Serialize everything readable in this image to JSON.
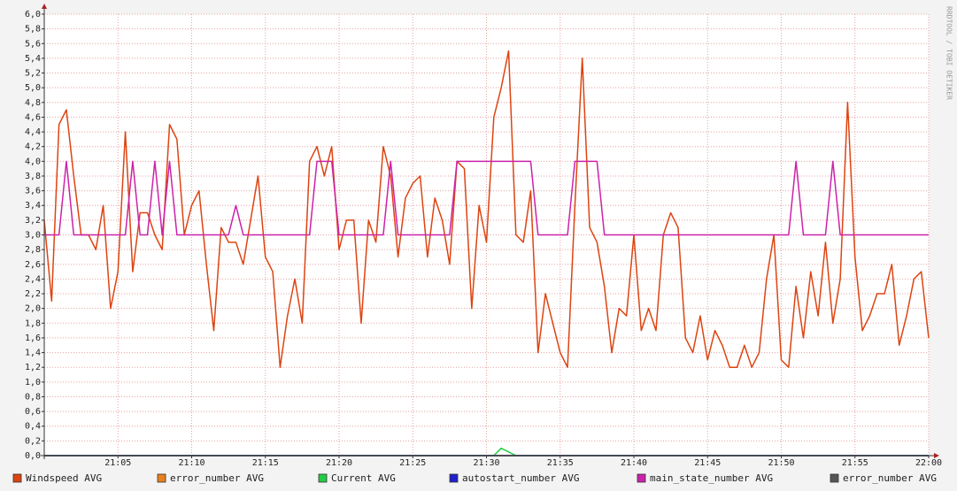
{
  "chart_data": {
    "type": "line",
    "watermark": "RRDTOOL / TOBI OETIKER",
    "x": [
      1260,
      1260.5,
      1261,
      1261.5,
      1262,
      1262.5,
      1263,
      1263.5,
      1264,
      1264.5,
      1265,
      1265.5,
      1266,
      1266.5,
      1267,
      1267.5,
      1268,
      1268.5,
      1269,
      1269.5,
      1270,
      1270.5,
      1271,
      1271.5,
      1272,
      1272.5,
      1273,
      1273.5,
      1274,
      1274.5,
      1275,
      1275.5,
      1276,
      1276.5,
      1277,
      1277.5,
      1278,
      1278.5,
      1279,
      1279.5,
      1280,
      1280.5,
      1281,
      1281.5,
      1282,
      1282.5,
      1283,
      1283.5,
      1284,
      1284.5,
      1285,
      1285.5,
      1286,
      1286.5,
      1287,
      1287.5,
      1288,
      1288.5,
      1289,
      1289.5,
      1290,
      1290.5,
      1291,
      1291.5,
      1292,
      1292.5,
      1293,
      1293.5,
      1294,
      1294.5,
      1295,
      1295.5,
      1296,
      1296.5,
      1297,
      1297.5,
      1298,
      1298.5,
      1299,
      1299.5,
      1300,
      1300.5,
      1301,
      1301.5,
      1302,
      1302.5,
      1303,
      1303.5,
      1304,
      1304.5,
      1305,
      1305.5,
      1306,
      1306.5,
      1307,
      1307.5,
      1308,
      1308.5,
      1309,
      1309.5,
      1310,
      1310.5,
      1311,
      1311.5,
      1312,
      1312.5,
      1313,
      1313.5,
      1314,
      1314.5,
      1315,
      1315.5,
      1316,
      1316.5,
      1317,
      1317.5,
      1318,
      1318.5,
      1319,
      1319.5,
      1320
    ],
    "xlim": [
      1260,
      1320
    ],
    "xticks": [
      {
        "value": 1265,
        "label": "21:05"
      },
      {
        "value": 1270,
        "label": "21:10"
      },
      {
        "value": 1275,
        "label": "21:15"
      },
      {
        "value": 1280,
        "label": "21:20"
      },
      {
        "value": 1285,
        "label": "21:25"
      },
      {
        "value": 1290,
        "label": "21:30"
      },
      {
        "value": 1295,
        "label": "21:35"
      },
      {
        "value": 1300,
        "label": "21:40"
      },
      {
        "value": 1305,
        "label": "21:45"
      },
      {
        "value": 1310,
        "label": "21:50"
      },
      {
        "value": 1315,
        "label": "21:55"
      },
      {
        "value": 1320,
        "label": "22:00"
      }
    ],
    "ylim": [
      0,
      6
    ],
    "yticks": [
      {
        "value": 0,
        "label": "0,0"
      },
      {
        "value": 0.2,
        "label": "0,2"
      },
      {
        "value": 0.4,
        "label": "0,4"
      },
      {
        "value": 0.6,
        "label": "0,6"
      },
      {
        "value": 0.8,
        "label": "0,8"
      },
      {
        "value": 1,
        "label": "1,0"
      },
      {
        "value": 1.2,
        "label": "1,2"
      },
      {
        "value": 1.4,
        "label": "1,4"
      },
      {
        "value": 1.6,
        "label": "1,6"
      },
      {
        "value": 1.8,
        "label": "1,8"
      },
      {
        "value": 2,
        "label": "2,0"
      },
      {
        "value": 2.2,
        "label": "2,2"
      },
      {
        "value": 2.4,
        "label": "2,4"
      },
      {
        "value": 2.6,
        "label": "2,6"
      },
      {
        "value": 2.8,
        "label": "2,8"
      },
      {
        "value": 3,
        "label": "3,0"
      },
      {
        "value": 3.2,
        "label": "3,2"
      },
      {
        "value": 3.4,
        "label": "3,4"
      },
      {
        "value": 3.6,
        "label": "3,6"
      },
      {
        "value": 3.8,
        "label": "3,8"
      },
      {
        "value": 4,
        "label": "4,0"
      },
      {
        "value": 4.2,
        "label": "4,2"
      },
      {
        "value": 4.4,
        "label": "4,4"
      },
      {
        "value": 4.6,
        "label": "4,6"
      },
      {
        "value": 4.8,
        "label": "4,8"
      },
      {
        "value": 5,
        "label": "5,0"
      },
      {
        "value": 5.2,
        "label": "5,2"
      },
      {
        "value": 5.4,
        "label": "5,4"
      },
      {
        "value": 5.6,
        "label": "5,6"
      },
      {
        "value": 5.8,
        "label": "5,8"
      },
      {
        "value": 6,
        "label": "6,0"
      }
    ],
    "grid": true,
    "series": [
      {
        "name": "Windspeed AVG",
        "color": "#dd4411",
        "values": [
          3.2,
          2.1,
          4.5,
          4.7,
          3.8,
          3.0,
          3.0,
          2.8,
          3.4,
          2.0,
          2.5,
          4.4,
          2.5,
          3.3,
          3.3,
          3.0,
          2.8,
          4.5,
          4.3,
          3.0,
          3.4,
          3.6,
          2.6,
          1.7,
          3.1,
          2.9,
          2.9,
          2.6,
          3.2,
          3.8,
          2.7,
          2.5,
          1.2,
          1.9,
          2.4,
          1.8,
          4.0,
          4.2,
          3.8,
          4.2,
          2.8,
          3.2,
          3.2,
          1.8,
          3.2,
          2.9,
          4.2,
          3.8,
          2.7,
          3.5,
          3.7,
          3.8,
          2.7,
          3.5,
          3.2,
          2.6,
          4.0,
          3.9,
          2.0,
          3.4,
          2.9,
          4.6,
          5.0,
          5.5,
          3.0,
          2.9,
          3.6,
          1.4,
          2.2,
          1.8,
          1.4,
          1.2,
          3.4,
          5.4,
          3.1,
          2.9,
          2.3,
          1.4,
          2.0,
          1.9,
          3.0,
          1.7,
          2.0,
          1.7,
          3.0,
          3.3,
          3.1,
          1.6,
          1.4,
          1.9,
          1.3,
          1.7,
          1.5,
          1.2,
          1.2,
          1.5,
          1.2,
          1.4,
          2.4,
          3.0,
          1.3,
          1.2,
          2.3,
          1.6,
          2.5,
          1.9,
          2.9,
          1.8,
          2.4,
          4.8,
          2.7,
          1.7,
          1.9,
          2.2,
          2.2,
          2.6,
          1.5,
          1.9,
          2.4,
          2.5,
          1.6
        ]
      },
      {
        "name": "error_number AVG",
        "color": "#e8801c",
        "values": [
          0,
          0,
          0,
          0,
          0,
          0,
          0,
          0,
          0,
          0,
          0,
          0,
          0,
          0,
          0,
          0,
          0,
          0,
          0,
          0,
          0,
          0,
          0,
          0,
          0,
          0,
          0,
          0,
          0,
          0,
          0,
          0,
          0,
          0,
          0,
          0,
          0,
          0,
          0,
          0,
          0,
          0,
          0,
          0,
          0,
          0,
          0,
          0,
          0,
          0,
          0,
          0,
          0,
          0,
          0,
          0,
          0,
          0,
          0,
          0,
          0,
          0,
          0,
          0,
          0,
          0,
          0,
          0,
          0,
          0,
          0,
          0,
          0,
          0,
          0,
          0,
          0,
          0,
          0,
          0,
          0,
          0,
          0,
          0,
          0,
          0,
          0,
          0,
          0,
          0,
          0,
          0,
          0,
          0,
          0,
          0,
          0,
          0,
          0,
          0,
          0,
          0,
          0,
          0,
          0,
          0,
          0,
          0,
          0,
          0,
          0,
          0,
          0,
          0,
          0,
          0,
          0,
          0,
          0,
          0,
          0
        ]
      },
      {
        "name": "Current AVG",
        "color": "#22cc44",
        "values": [
          0,
          0,
          0,
          0,
          0,
          0,
          0,
          0,
          0,
          0,
          0,
          0,
          0,
          0,
          0,
          0,
          0,
          0,
          0,
          0,
          0,
          0,
          0,
          0,
          0,
          0,
          0,
          0,
          0,
          0,
          0,
          0,
          0,
          0,
          0,
          0,
          0,
          0,
          0,
          0,
          0,
          0,
          0,
          0,
          0,
          0,
          0,
          0,
          0,
          0,
          0,
          0,
          0,
          0,
          0,
          0,
          0,
          0,
          0,
          0,
          0,
          0,
          0.1,
          0.05,
          0,
          0,
          0,
          0,
          0,
          0,
          0,
          0,
          0,
          0,
          0,
          0,
          0,
          0,
          0,
          0,
          0,
          0,
          0,
          0,
          0,
          0,
          0,
          0,
          0,
          0,
          0,
          0,
          0,
          0,
          0,
          0,
          0,
          0,
          0,
          0,
          0,
          0,
          0,
          0,
          0,
          0,
          0,
          0,
          0,
          0,
          0,
          0,
          0,
          0,
          0,
          0,
          0,
          0,
          0,
          0,
          0
        ]
      },
      {
        "name": "autostart_number AVG",
        "color": "#2222cc",
        "values": [
          0,
          0,
          0,
          0,
          0,
          0,
          0,
          0,
          0,
          0,
          0,
          0,
          0,
          0,
          0,
          0,
          0,
          0,
          0,
          0,
          0,
          0,
          0,
          0,
          0,
          0,
          0,
          0,
          0,
          0,
          0,
          0,
          0,
          0,
          0,
          0,
          0,
          0,
          0,
          0,
          0,
          0,
          0,
          0,
          0,
          0,
          0,
          0,
          0,
          0,
          0,
          0,
          0,
          0,
          0,
          0,
          0,
          0,
          0,
          0,
          0,
          0,
          0,
          0,
          0,
          0,
          0,
          0,
          0,
          0,
          0,
          0,
          0,
          0,
          0,
          0,
          0,
          0,
          0,
          0,
          0,
          0,
          0,
          0,
          0,
          0,
          0,
          0,
          0,
          0,
          0,
          0,
          0,
          0,
          0,
          0,
          0,
          0,
          0,
          0,
          0,
          0,
          0,
          0,
          0,
          0,
          0,
          0,
          0,
          0,
          0,
          0,
          0,
          0,
          0,
          0,
          0,
          0,
          0,
          0,
          0
        ]
      },
      {
        "name": "main_state_number AVG",
        "color": "#cc22aa",
        "values": [
          3,
          3,
          3,
          4,
          3,
          3,
          3,
          3,
          3,
          3,
          3,
          3,
          4,
          3,
          3,
          4,
          3,
          4,
          3,
          3,
          3,
          3,
          3,
          3,
          3,
          3,
          3.4,
          3,
          3,
          3,
          3,
          3,
          3,
          3,
          3,
          3,
          3,
          4,
          4,
          4,
          3,
          3,
          3,
          3,
          3,
          3,
          3,
          4,
          3,
          3,
          3,
          3,
          3,
          3,
          3,
          3,
          4,
          4,
          4,
          4,
          4,
          4,
          4,
          4,
          4,
          4,
          4,
          3,
          3,
          3,
          3,
          3,
          4,
          4,
          4,
          4,
          3,
          3,
          3,
          3,
          3,
          3,
          3,
          3,
          3,
          3,
          3,
          3,
          3,
          3,
          3,
          3,
          3,
          3,
          3,
          3,
          3,
          3,
          3,
          3,
          3,
          3,
          4,
          3,
          3,
          3,
          3,
          4,
          3,
          3,
          3,
          3,
          3,
          3,
          3,
          3,
          3,
          3,
          3,
          3,
          3
        ]
      },
      {
        "name": "error_number AVG",
        "color": "#555555",
        "values": [
          0,
          0,
          0,
          0,
          0,
          0,
          0,
          0,
          0,
          0,
          0,
          0,
          0,
          0,
          0,
          0,
          0,
          0,
          0,
          0,
          0,
          0,
          0,
          0,
          0,
          0,
          0,
          0,
          0,
          0,
          0,
          0,
          0,
          0,
          0,
          0,
          0,
          0,
          0,
          0,
          0,
          0,
          0,
          0,
          0,
          0,
          0,
          0,
          0,
          0,
          0,
          0,
          0,
          0,
          0,
          0,
          0,
          0,
          0,
          0,
          0,
          0,
          0,
          0,
          0,
          0,
          0,
          0,
          0,
          0,
          0,
          0,
          0,
          0,
          0,
          0,
          0,
          0,
          0,
          0,
          0,
          0,
          0,
          0,
          0,
          0,
          0,
          0,
          0,
          0,
          0,
          0,
          0,
          0,
          0,
          0,
          0,
          0,
          0,
          0,
          0,
          0,
          0,
          0,
          0,
          0,
          0,
          0,
          0,
          0,
          0,
          0,
          0,
          0,
          0,
          0,
          0,
          0,
          0,
          0,
          0
        ]
      }
    ]
  }
}
